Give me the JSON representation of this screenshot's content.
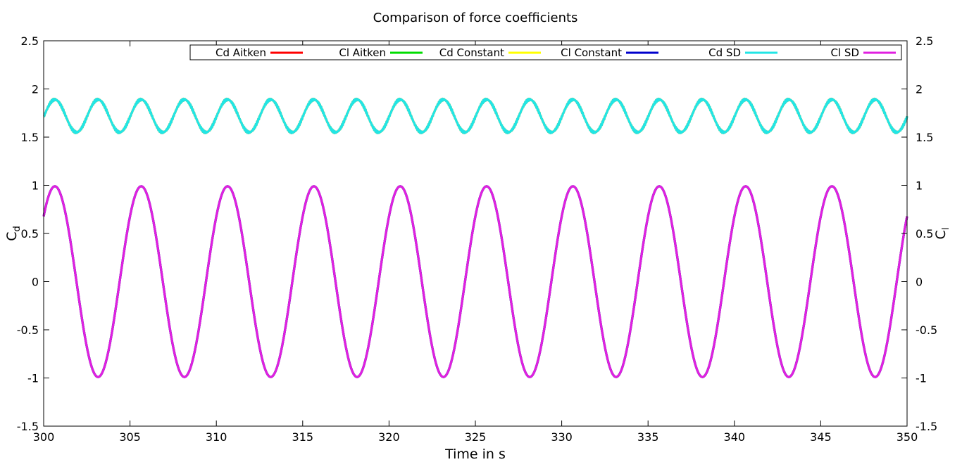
{
  "chart_data": {
    "type": "line",
    "title": "Comparison of force coefficients",
    "xlabel": "Time in s",
    "ylabel_left": {
      "base": "C",
      "sub": "d"
    },
    "ylabel_right": {
      "base": "C",
      "sub": "l"
    },
    "xlim": [
      300,
      350
    ],
    "ylim": [
      -1.5,
      2.5
    ],
    "y2lim": [
      -1.5,
      2.5
    ],
    "xticks": [
      "300",
      "305",
      "310",
      "315",
      "320",
      "325",
      "330",
      "335",
      "340",
      "345",
      "350"
    ],
    "yticks": [
      "-1.5",
      "-1",
      "-0.5",
      "0",
      "0.5",
      "1",
      "1.5",
      "2",
      "2.5"
    ],
    "y2ticks": [
      "-1.5",
      "-1",
      "-0.5",
      "0",
      "0.5",
      "1",
      "1.5",
      "2",
      "2.5"
    ],
    "grid": false,
    "legend_position": "top-right",
    "series": [
      {
        "name": "Cd Aitken",
        "color": "#ff0000",
        "axis": "left",
        "kind": "drag",
        "mean": 1.72,
        "amplitude": 0.17,
        "period": 2.5,
        "phase_x": 300.65,
        "x_range": [
          300,
          350
        ]
      },
      {
        "name": "Cl Aitken",
        "color": "#00dd00",
        "axis": "right",
        "kind": "lift",
        "mean": 0.0,
        "amplitude": 0.99,
        "period": 5.0,
        "phase_x": 300.65,
        "x_range": [
          300,
          350
        ]
      },
      {
        "name": "Cd Constant",
        "color": "#ffff00",
        "axis": "left",
        "kind": "drag",
        "mean": 1.72,
        "amplitude": 0.17,
        "period": 2.5,
        "phase_x": 300.65,
        "x_range": [
          300,
          350
        ]
      },
      {
        "name": "Cl Constant",
        "color": "#0000cc",
        "axis": "right",
        "kind": "lift",
        "mean": 0.0,
        "amplitude": 0.99,
        "period": 5.0,
        "phase_x": 300.65,
        "x_range": [
          300,
          350
        ]
      },
      {
        "name": "Cd SD",
        "color": "#22e5e5",
        "axis": "left",
        "kind": "drag",
        "mean": 1.72,
        "amplitude": 0.17,
        "period": 2.5,
        "phase_x": 300.65,
        "x_range": [
          300,
          350
        ]
      },
      {
        "name": "Cl SD",
        "color": "#e020e0",
        "axis": "right",
        "kind": "lift",
        "mean": 0.0,
        "amplitude": 0.99,
        "period": 5.0,
        "phase_x": 300.65,
        "x_range": [
          300,
          350
        ]
      }
    ]
  }
}
